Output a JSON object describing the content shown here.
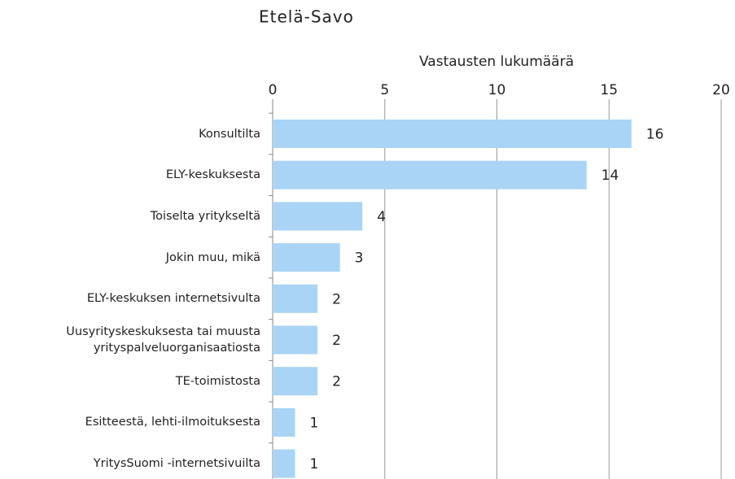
{
  "chart_data": {
    "type": "bar",
    "orientation": "horizontal",
    "title": "Etelä-Savo",
    "x_label": "Vastausten lukumäärä",
    "categories": [
      "Konsultilta",
      "ELY-keskuksesta",
      "Toiselta yritykseltä",
      "Jokin muu, mikä",
      "ELY-keskuksen internetsivulta",
      "Uusyrityskeskuksesta tai muusta yrityspalveluorganisaatiosta",
      "TE-toimistosta",
      "Esitteestä, lehti-ilmoituksesta",
      "YritysSuomi -internetsivuilta"
    ],
    "values": [
      16,
      14,
      4,
      3,
      2,
      2,
      2,
      1,
      1
    ],
    "color": "#a9d4f5",
    "xlim": [
      0,
      20
    ],
    "xticks": [
      0,
      5,
      10,
      15,
      20
    ],
    "grid": true
  }
}
